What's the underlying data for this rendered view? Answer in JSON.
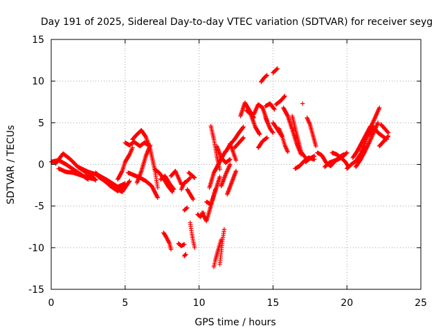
{
  "chart_data": {
    "type": "scatter",
    "title": "Day 191 of 2025, Sidereal Day-to-day VTEC variation (SDTVAR) for receiver seyg",
    "xlabel": "GPS time / hours",
    "ylabel": "SDTVAR / TECUs",
    "xlim": [
      0,
      25
    ],
    "ylim": [
      -15,
      15
    ],
    "x_ticks": [
      0,
      5,
      10,
      15,
      20,
      25
    ],
    "x_tick_labels": [
      "0",
      "5",
      "10",
      "15",
      "20",
      "25"
    ],
    "y_ticks": [
      -15,
      -10,
      -5,
      0,
      5,
      10,
      15
    ],
    "y_tick_labels": [
      "-15",
      "-10",
      "-5",
      "0",
      "5",
      "10",
      "15"
    ],
    "grid": true,
    "marker": "plus",
    "marker_color": "#ff0000",
    "series": [
      {
        "name": "SDTVAR",
        "segments": [
          {
            "x": [
              0.0,
              0.5,
              1.0,
              1.5,
              2.0,
              2.5
            ],
            "y": [
              0.3,
              0.5,
              0.0,
              -0.6,
              -1.2,
              -1.8
            ]
          },
          {
            "x": [
              0.3,
              0.8,
              1.3,
              1.8,
              2.3,
              2.8,
              3.0
            ],
            "y": [
              0.1,
              1.3,
              0.6,
              -0.3,
              -0.9,
              -1.5,
              -1.9
            ]
          },
          {
            "x": [
              0.5,
              1.0,
              1.5,
              2.0,
              2.5,
              3.0
            ],
            "y": [
              -0.5,
              -0.9,
              -1.0,
              -1.3,
              -1.6,
              -1.8
            ]
          },
          {
            "x": [
              1.8,
              2.5,
              3.2,
              3.8,
              4.5,
              5.0
            ],
            "y": [
              -0.3,
              -0.9,
              -1.3,
              -1.9,
              -2.7,
              -2.3
            ]
          },
          {
            "x": [
              3.0,
              3.5,
              4.0,
              4.5,
              5.0
            ],
            "y": [
              -1.0,
              -1.8,
              -2.6,
              -3.2,
              -2.5
            ]
          },
          {
            "x": [
              3.2,
              3.8,
              4.3,
              4.8,
              5.3
            ],
            "y": [
              -1.5,
              -2.2,
              -2.8,
              -3.3,
              -2.0
            ]
          },
          {
            "x": [
              4.5,
              4.8,
              5.0,
              5.3,
              5.5
            ],
            "y": [
              -1.8,
              -0.8,
              0.3,
              1.2,
              2.0
            ]
          },
          {
            "x": [
              5.0,
              5.3,
              5.6,
              6.0,
              6.3,
              6.5
            ],
            "y": [
              2.6,
              2.3,
              2.7,
              2.2,
              2.6,
              2.4
            ]
          },
          {
            "x": [
              5.5,
              5.8,
              6.1,
              6.4,
              6.7,
              7.0,
              7.2
            ],
            "y": [
              3.0,
              3.6,
              4.1,
              3.3,
              1.8,
              -0.6,
              -2.8
            ]
          },
          {
            "x": [
              5.2,
              5.6,
              6.0,
              6.4,
              6.8,
              7.2
            ],
            "y": [
              -1.0,
              -1.3,
              -1.6,
              -2.0,
              -2.6,
              -4.0
            ]
          },
          {
            "x": [
              5.8,
              6.1,
              6.4,
              6.7
            ],
            "y": [
              -2.2,
              -0.8,
              1.0,
              2.3
            ]
          },
          {
            "x": [
              7.0,
              7.3,
              7.6,
              7.9,
              8.2
            ],
            "y": [
              -0.6,
              -1.0,
              -1.7,
              -2.6,
              -3.3
            ]
          },
          {
            "x": [
              7.4,
              7.7,
              8.0,
              8.3
            ],
            "y": [
              -1.8,
              -1.4,
              -2.3,
              -3.0
            ]
          },
          {
            "x": [
              7.6,
              7.8,
              8.0,
              8.1
            ],
            "y": [
              -8.2,
              -8.8,
              -9.5,
              -10.2
            ]
          },
          {
            "x": [
              8.1,
              8.4,
              8.6,
              8.8
            ],
            "y": [
              -1.4,
              -0.8,
              -1.6,
              -2.4
            ]
          },
          {
            "x": [
              8.6,
              8.8,
              9.0
            ],
            "y": [
              -9.5,
              -9.8,
              -9.6
            ]
          },
          {
            "x": [
              8.8,
              9.0,
              9.2,
              9.4
            ],
            "y": [
              -3.0,
              -2.2,
              -2.0,
              -1.6
            ]
          },
          {
            "x": [
              9.0,
              9.2
            ],
            "y": [
              -5.5,
              -5.2
            ]
          },
          {
            "x": [
              9.0,
              9.1
            ],
            "y": [
              -11.0,
              -10.8
            ]
          },
          {
            "x": [
              9.2,
              9.4,
              9.6
            ],
            "y": [
              -3.0,
              -3.6,
              -4.2
            ]
          },
          {
            "x": [
              9.3,
              9.5,
              9.7
            ],
            "y": [
              -1.0,
              -1.3,
              -1.6
            ]
          },
          {
            "x": [
              9.4,
              9.5,
              9.6,
              9.7
            ],
            "y": [
              -7.0,
              -8.2,
              -9.2,
              -10.0
            ]
          },
          {
            "x": [
              9.9,
              10.1,
              10.3
            ],
            "y": [
              -6.0,
              -6.3,
              -5.8
            ]
          },
          {
            "x": [
              10.2,
              10.5,
              10.8,
              11.1
            ],
            "y": [
              -5.8,
              -6.8,
              -5.0,
              -3.0
            ]
          },
          {
            "x": [
              10.5,
              10.8,
              11.1,
              11.4
            ],
            "y": [
              -4.5,
              -4.8,
              -3.2,
              -1.5
            ]
          },
          {
            "x": [
              10.7,
              11.0,
              11.3,
              11.6,
              11.8
            ],
            "y": [
              -2.8,
              -1.0,
              0.0,
              1.0,
              1.6
            ]
          },
          {
            "x": [
              10.8,
              11.0,
              11.2,
              11.4
            ],
            "y": [
              4.6,
              3.0,
              1.0,
              -0.6
            ]
          },
          {
            "x": [
              11.0,
              11.1,
              11.3,
              11.5
            ],
            "y": [
              -12.3,
              -11.5,
              -10.2,
              -9.0
            ]
          },
          {
            "x": [
              11.4,
              11.5,
              11.6,
              11.7
            ],
            "y": [
              -12.0,
              -10.5,
              -9.0,
              -7.8
            ]
          },
          {
            "x": [
              11.2,
              11.5,
              11.8,
              12.1
            ],
            "y": [
              2.2,
              0.8,
              0.2,
              0.6
            ]
          },
          {
            "x": [
              11.5,
              11.8,
              12.1
            ],
            "y": [
              -2.6,
              -1.2,
              0.0
            ]
          },
          {
            "x": [
              11.8,
              12.1,
              12.4,
              12.7,
              13.0
            ],
            "y": [
              1.5,
              2.4,
              3.0,
              3.8,
              4.5
            ]
          },
          {
            "x": [
              11.9,
              12.2,
              12.5
            ],
            "y": [
              -3.6,
              -2.2,
              -0.8
            ]
          },
          {
            "x": [
              12.1,
              12.3,
              12.5
            ],
            "y": [
              2.5,
              1.5,
              0.5
            ]
          },
          {
            "x": [
              12.4,
              12.7,
              13.0
            ],
            "y": [
              2.0,
              2.6,
              3.2
            ]
          },
          {
            "x": [
              12.8,
              13.1,
              13.4,
              13.7
            ],
            "y": [
              5.8,
              7.4,
              6.5,
              5.6
            ]
          },
          {
            "x": [
              13.2,
              13.5,
              13.8,
              14.1
            ],
            "y": [
              6.5,
              6.0,
              4.5,
              3.6
            ]
          },
          {
            "x": [
              13.7,
              14.0,
              14.3,
              14.6
            ],
            "y": [
              6.0,
              7.2,
              6.8,
              5.2
            ]
          },
          {
            "x": [
              14.0,
              14.3,
              14.6
            ],
            "y": [
              2.0,
              2.8,
              3.2
            ]
          },
          {
            "x": [
              14.2,
              14.4,
              14.6
            ],
            "y": [
              9.9,
              10.4,
              10.7
            ]
          },
          {
            "x": [
              14.5,
              14.8,
              15.0
            ],
            "y": [
              5.6,
              4.3,
              3.8
            ]
          },
          {
            "x": [
              14.5,
              14.8,
              15.1
            ],
            "y": [
              7.0,
              7.3,
              6.6
            ]
          },
          {
            "x": [
              15.0,
              15.3
            ],
            "y": [
              11.0,
              11.5
            ]
          },
          {
            "x": [
              15.0,
              15.3,
              15.6
            ],
            "y": [
              5.0,
              4.2,
              3.4
            ]
          },
          {
            "x": [
              15.2,
              15.5,
              15.8
            ],
            "y": [
              7.2,
              7.6,
              8.2
            ]
          },
          {
            "x": [
              15.4,
              15.6,
              15.8,
              16.0
            ],
            "y": [
              4.3,
              3.5,
              2.3,
              1.5
            ]
          },
          {
            "x": [
              15.7,
              16.0,
              16.3,
              16.6,
              16.9
            ],
            "y": [
              6.8,
              5.8,
              4.2,
              2.5,
              1.2
            ]
          },
          {
            "x": [
              16.3,
              16.6,
              16.9,
              17.2
            ],
            "y": [
              5.8,
              3.6,
              1.5,
              0.8
            ]
          },
          {
            "x": [
              16.5,
              16.8,
              17.1,
              17.4,
              17.8
            ],
            "y": [
              -0.5,
              -0.2,
              0.4,
              0.8,
              0.6
            ]
          },
          {
            "x": [
              17.0
            ],
            "y": [
              7.3
            ]
          },
          {
            "x": [
              17.3,
              17.5,
              17.7,
              17.9
            ],
            "y": [
              5.6,
              4.8,
              3.5,
              2.2
            ]
          },
          {
            "x": [
              17.2,
              17.5,
              17.8
            ],
            "y": [
              0.3,
              0.7,
              1.0
            ]
          },
          {
            "x": [
              18.0,
              18.3,
              18.6,
              18.9,
              19.2,
              19.5,
              19.8
            ],
            "y": [
              1.4,
              1.1,
              0.2,
              -0.2,
              0.4,
              0.9,
              1.2
            ]
          },
          {
            "x": [
              18.5,
              18.8,
              19.1,
              19.4,
              19.7,
              20.0
            ],
            "y": [
              -0.3,
              0.2,
              0.4,
              0.6,
              0.9,
              1.4
            ]
          },
          {
            "x": [
              19.0,
              19.3,
              19.6,
              19.9,
              20.1
            ],
            "y": [
              1.4,
              1.2,
              0.8,
              0.3,
              -0.3
            ]
          },
          {
            "x": [
              20.0,
              20.3,
              20.6,
              20.9,
              21.2
            ],
            "y": [
              -0.5,
              0.0,
              0.4,
              1.2,
              2.0
            ]
          },
          {
            "x": [
              20.4,
              20.7,
              21.0,
              21.3,
              21.6
            ],
            "y": [
              0.8,
              1.6,
              2.6,
              3.6,
              4.6
            ]
          },
          {
            "x": [
              20.6,
              20.9,
              21.2,
              21.5,
              21.8,
              22.1
            ],
            "y": [
              -0.3,
              0.5,
              1.5,
              2.6,
              3.8,
              5.0
            ]
          },
          {
            "x": [
              21.0,
              21.3,
              21.6,
              21.9,
              22.2
            ],
            "y": [
              1.6,
              3.0,
              4.4,
              5.6,
              6.8
            ]
          },
          {
            "x": [
              21.5,
              21.8,
              22.1,
              22.4,
              22.7
            ],
            "y": [
              3.5,
              4.5,
              3.8,
              3.4,
              3.0
            ]
          },
          {
            "x": [
              22.2,
              22.5,
              22.8
            ],
            "y": [
              2.2,
              2.8,
              3.4
            ]
          },
          {
            "x": [
              22.3,
              22.6,
              22.8
            ],
            "y": [
              4.8,
              4.2,
              3.8
            ]
          }
        ]
      }
    ]
  }
}
